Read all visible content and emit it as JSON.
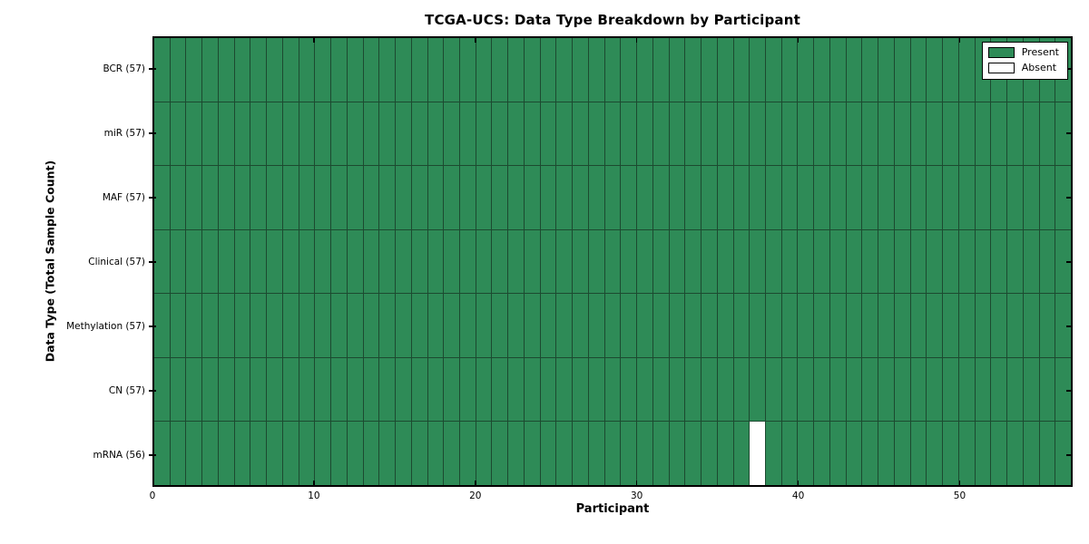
{
  "title": "TCGA-UCS: Data Type Breakdown by Participant",
  "xlabel": "Participant",
  "ylabel": "Data Type (Total Sample Count)",
  "legend": {
    "present_label": "Present",
    "absent_label": "Absent"
  },
  "chart_data": {
    "type": "heatmap",
    "title": "TCGA-UCS: Data Type Breakdown by Participant",
    "xlabel": "Participant",
    "ylabel": "Data Type (Total Sample Count)",
    "n_participants": 57,
    "xlim": [
      0,
      57
    ],
    "x_ticks": [
      0,
      10,
      20,
      30,
      40,
      50
    ],
    "rows": [
      {
        "label": "BCR (57)",
        "data_type": "BCR",
        "present_count": 57,
        "absent_participants": []
      },
      {
        "label": "miR (57)",
        "data_type": "miR",
        "present_count": 57,
        "absent_participants": []
      },
      {
        "label": "MAF (57)",
        "data_type": "MAF",
        "present_count": 57,
        "absent_participants": []
      },
      {
        "label": "Clinical (57)",
        "data_type": "Clinical",
        "present_count": 57,
        "absent_participants": []
      },
      {
        "label": "Methylation (57)",
        "data_type": "Methylation",
        "present_count": 57,
        "absent_participants": []
      },
      {
        "label": "CN (57)",
        "data_type": "CN",
        "present_count": 57,
        "absent_participants": []
      },
      {
        "label": "mRNA (56)",
        "data_type": "mRNA",
        "present_count": 56,
        "absent_participants": [
          37
        ]
      }
    ],
    "legend_entries": [
      {
        "label": "Present",
        "value": "present"
      },
      {
        "label": "Absent",
        "value": "absent"
      }
    ],
    "colors": {
      "present": "#2e8b57",
      "absent": "#ffffff",
      "cell_line": "#1c4a30",
      "spine": "#000000"
    },
    "legend_position": "upper right",
    "grid": "cell-borders"
  }
}
